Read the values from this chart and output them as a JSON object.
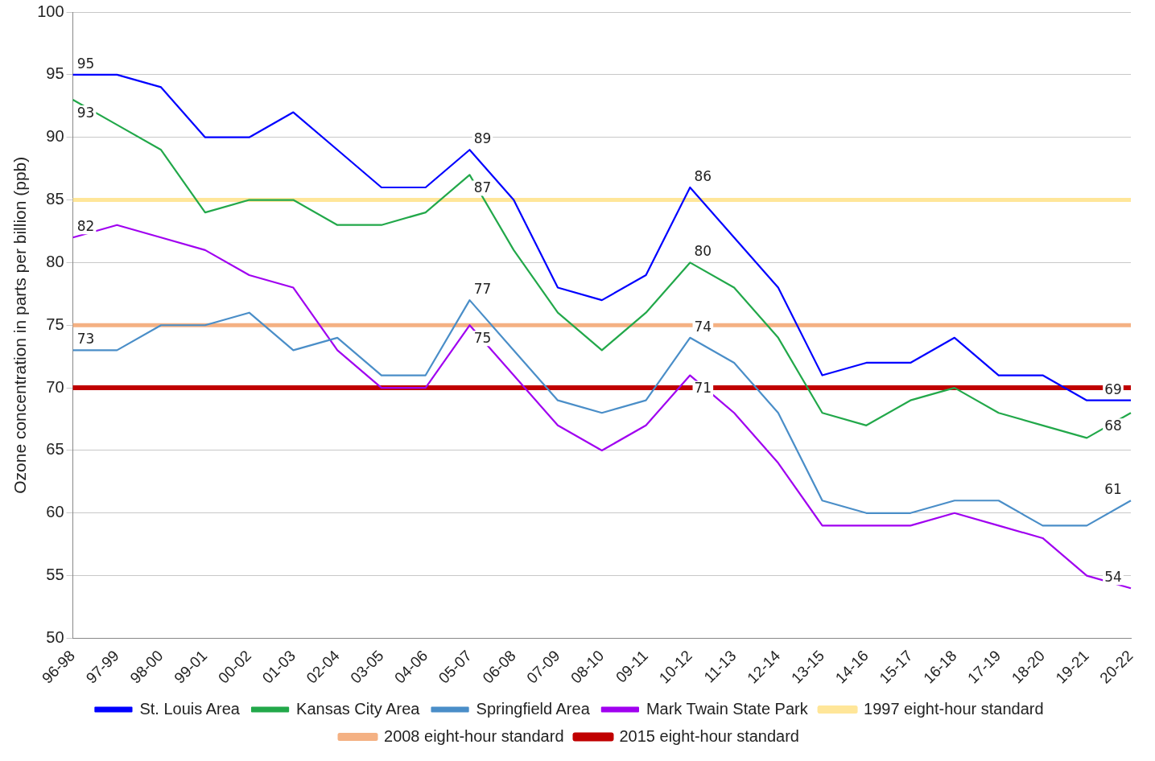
{
  "chart_data": {
    "type": "line",
    "ylabel": "Ozone concentration in parts per billion (ppb)",
    "categories": [
      "96-98",
      "97-99",
      "98-00",
      "99-01",
      "00-02",
      "01-03",
      "02-04",
      "03-05",
      "04-06",
      "05-07",
      "06-08",
      "07-09",
      "08-10",
      "09-11",
      "10-12",
      "11-13",
      "12-14",
      "13-15",
      "14-16",
      "15-17",
      "16-18",
      "17-19",
      "18-20",
      "19-21",
      "20-22"
    ],
    "series": [
      {
        "name": "St. Louis Area",
        "color": "#0000ff",
        "values": [
          95,
          95,
          94,
          90,
          90,
          92,
          89,
          86,
          86,
          89,
          85,
          78,
          77,
          79,
          86,
          82,
          78,
          71,
          72,
          72,
          74,
          71,
          71,
          69,
          69
        ],
        "value_labels": [
          "95",
          null,
          null,
          null,
          null,
          null,
          null,
          null,
          null,
          "89",
          null,
          null,
          null,
          null,
          "86",
          null,
          null,
          null,
          null,
          null,
          null,
          null,
          null,
          null,
          "69"
        ]
      },
      {
        "name": "Kansas City Area",
        "color": "#22a84a",
        "values": [
          93,
          91,
          89,
          84,
          85,
          85,
          83,
          83,
          84,
          87,
          81,
          76,
          73,
          76,
          80,
          78,
          74,
          68,
          67,
          69,
          70,
          68,
          67,
          66,
          68
        ],
        "value_labels": [
          "93",
          null,
          null,
          null,
          null,
          null,
          null,
          null,
          null,
          "87",
          null,
          null,
          null,
          null,
          "80",
          null,
          null,
          null,
          null,
          null,
          null,
          null,
          null,
          null,
          "68"
        ]
      },
      {
        "name": "Springfield Area",
        "color": "#4a8ec8",
        "values": [
          73,
          73,
          75,
          75,
          76,
          73,
          74,
          71,
          71,
          77,
          73,
          69,
          68,
          69,
          74,
          72,
          68,
          61,
          60,
          60,
          61,
          61,
          59,
          59,
          61
        ],
        "value_labels": [
          "73",
          null,
          null,
          null,
          null,
          null,
          null,
          null,
          null,
          "77",
          null,
          null,
          null,
          null,
          "74",
          null,
          null,
          null,
          null,
          null,
          null,
          null,
          null,
          null,
          "61"
        ]
      },
      {
        "name": "Mark Twain State Park",
        "color": "#a000f0",
        "values": [
          82,
          83,
          82,
          81,
          79,
          78,
          73,
          70,
          70,
          75,
          71,
          67,
          65,
          67,
          71,
          68,
          64,
          59,
          59,
          59,
          60,
          59,
          58,
          55,
          54
        ],
        "value_labels": [
          "82",
          null,
          null,
          null,
          null,
          null,
          null,
          null,
          null,
          "75",
          null,
          null,
          null,
          null,
          "71",
          null,
          null,
          null,
          null,
          null,
          null,
          null,
          null,
          null,
          "54"
        ]
      },
      {
        "name": "1997 eight-hour standard",
        "color": "#ffe699",
        "values": [
          85,
          85,
          85,
          85,
          85,
          85,
          85,
          85,
          85,
          85,
          85,
          85,
          85,
          85,
          85,
          85,
          85,
          85,
          85,
          85,
          85,
          85,
          85,
          85,
          85
        ]
      },
      {
        "name": "2008 eight-hour standard",
        "color": "#f4b183",
        "values": [
          75,
          75,
          75,
          75,
          75,
          75,
          75,
          75,
          75,
          75,
          75,
          75,
          75,
          75,
          75,
          75,
          75,
          75,
          75,
          75,
          75,
          75,
          75,
          75,
          75
        ]
      },
      {
        "name": "2015 eight-hour standard",
        "color": "#c00000",
        "values": [
          70,
          70,
          70,
          70,
          70,
          70,
          70,
          70,
          70,
          70,
          70,
          70,
          70,
          70,
          70,
          70,
          70,
          70,
          70,
          70,
          70,
          70,
          70,
          70,
          70
        ]
      }
    ],
    "ylim": [
      50,
      100
    ],
    "yticks": [
      50,
      55,
      60,
      65,
      70,
      75,
      80,
      85,
      90,
      95,
      100
    ],
    "grid": "y",
    "legend": "bottom",
    "marker": "none",
    "line_style": "solid"
  }
}
